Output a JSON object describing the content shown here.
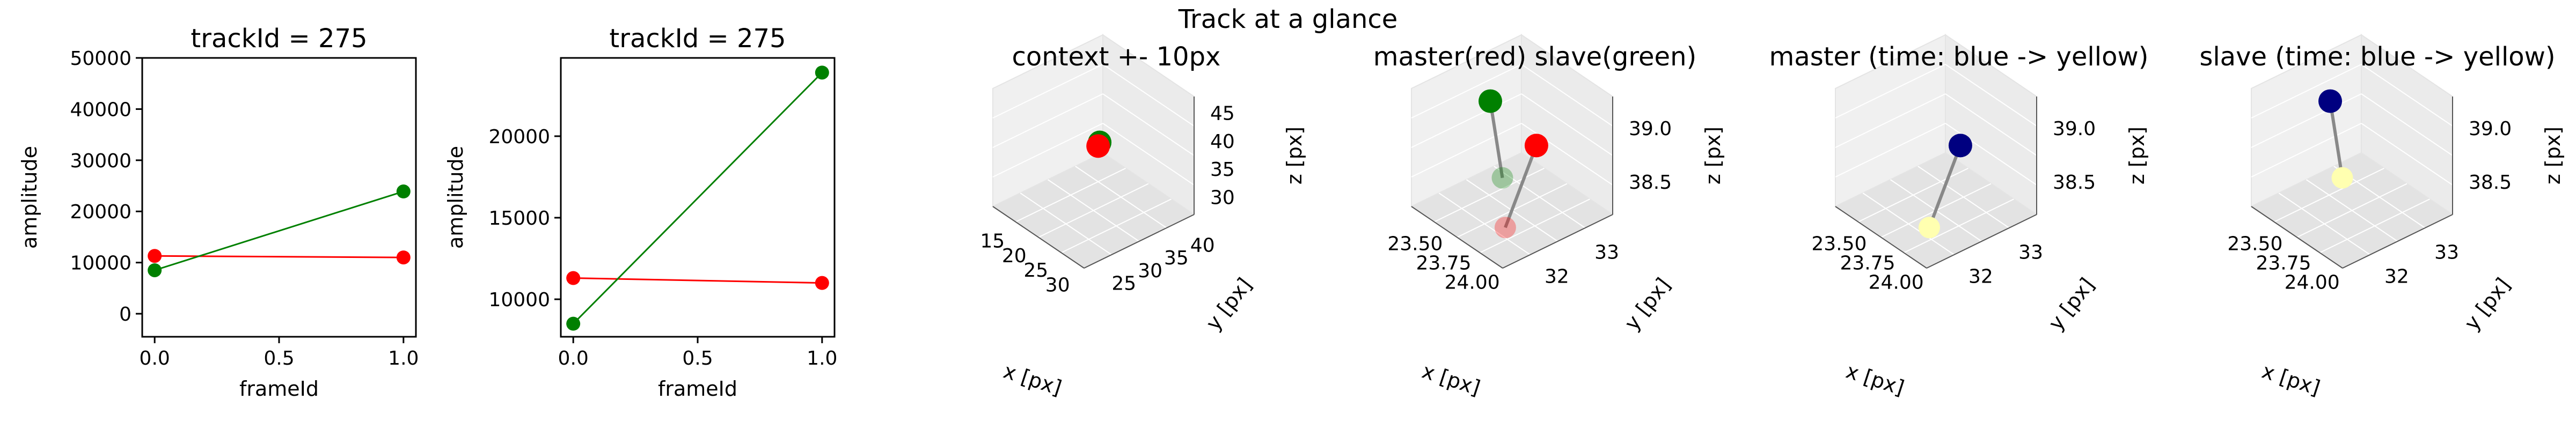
{
  "figure": {
    "suptitle": "Track at a glance"
  },
  "chart_data": [
    {
      "type": "line",
      "title": "trackId = 275",
      "xlabel": "frameId",
      "ylabel": "amplitude",
      "x": [
        0.0,
        1.0
      ],
      "xlim": [
        -0.05,
        1.05
      ],
      "xticks": [
        "0.0",
        "0.5",
        "1.0"
      ],
      "ylim": [
        -4500,
        50000
      ],
      "yticks": [
        "0",
        "10000",
        "20000",
        "30000",
        "40000",
        "50000"
      ],
      "grid": false,
      "series": [
        {
          "color": "#ff0000",
          "values": [
            11300,
            11000
          ]
        },
        {
          "color": "#008000",
          "values": [
            8500,
            23900
          ]
        }
      ]
    },
    {
      "type": "line",
      "title": "trackId = 275",
      "xlabel": "frameId",
      "ylabel": "amplitude",
      "x": [
        0.0,
        1.0
      ],
      "xlim": [
        -0.05,
        1.05
      ],
      "xticks": [
        "0.0",
        "0.5",
        "1.0"
      ],
      "ylim": [
        7700,
        24800
      ],
      "yticks": [
        "10000",
        "15000",
        "20000"
      ],
      "grid": false,
      "series": [
        {
          "color": "#ff0000",
          "values": [
            11300,
            11000
          ]
        },
        {
          "color": "#008000",
          "values": [
            8500,
            23900
          ]
        }
      ]
    },
    {
      "type": "scatter3d",
      "title": "context +- 10px",
      "xlabel": "x [px]",
      "ylabel": "y [px]",
      "zlabel": "z [px]",
      "xticks": [
        "15",
        "20",
        "25",
        "30"
      ],
      "yticks": [
        "25",
        "30",
        "35",
        "40"
      ],
      "zticks": [
        "30",
        "35",
        "40",
        "45"
      ],
      "points": [
        {
          "color": "#008000",
          "x": 23.6,
          "y": 33.0,
          "z": 39.0
        },
        {
          "color": "#ff0000",
          "x": 23.9,
          "y": 32.4,
          "z": 38.7
        }
      ]
    },
    {
      "type": "scatter3d",
      "title": "master(red) slave(green)",
      "xlabel": "x [px]",
      "ylabel": "y [px]",
      "zlabel": "z [px]",
      "xticks": [
        "23.50",
        "23.75",
        "24.00"
      ],
      "yticks": [
        "32",
        "33"
      ],
      "zticks": [
        "38.5",
        "39.0"
      ],
      "series": [
        {
          "name": "master",
          "color": "#ff0000",
          "points": [
            [
              23.9,
              33.2,
              39.0
            ],
            [
              24.0,
              32.3,
              38.3
            ]
          ]
        },
        {
          "name": "slave",
          "color": "#008000",
          "points": [
            [
              23.4,
              33.3,
              39.1
            ],
            [
              23.7,
              32.9,
              38.5
            ]
          ]
        }
      ]
    },
    {
      "type": "scatter3d",
      "title": "master (time: blue -> yellow)",
      "xlabel": "x [px]",
      "ylabel": "y [px]",
      "zlabel": "z [px]",
      "xticks": [
        "23.50",
        "23.75",
        "24.00"
      ],
      "yticks": [
        "32",
        "33"
      ],
      "zticks": [
        "38.5",
        "39.0"
      ],
      "points": [
        {
          "color": "#000080",
          "x": 23.9,
          "y": 33.2,
          "z": 39.0
        },
        {
          "color": "#ffffb0",
          "x": 24.0,
          "y": 32.3,
          "z": 38.3
        }
      ]
    },
    {
      "type": "scatter3d",
      "title": "slave (time: blue -> yellow)",
      "xlabel": "x [px]",
      "ylabel": "y [px]",
      "zlabel": "z [px]",
      "xticks": [
        "23.50",
        "23.75",
        "24.00"
      ],
      "yticks": [
        "32",
        "33"
      ],
      "zticks": [
        "38.5",
        "39.0"
      ],
      "points": [
        {
          "color": "#000080",
          "x": 23.4,
          "y": 33.3,
          "z": 39.1
        },
        {
          "color": "#ffffb0",
          "x": 23.7,
          "y": 32.9,
          "z": 38.5
        }
      ]
    }
  ]
}
